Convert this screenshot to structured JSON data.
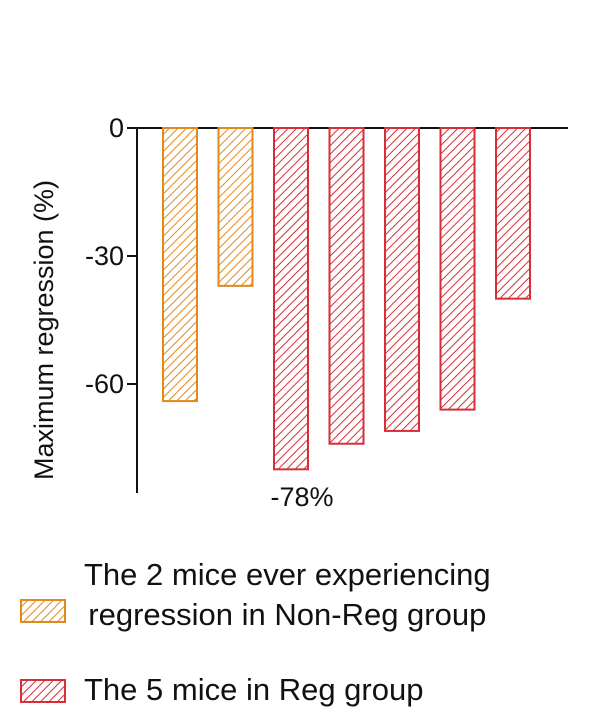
{
  "chart_data": {
    "type": "bar",
    "ylabel": "Maximum regression (%)",
    "ylim": [
      -85,
      0
    ],
    "yticks": [
      0,
      -30,
      -60
    ],
    "ytick_labels": [
      "0",
      "-30",
      "-60"
    ],
    "grid": false,
    "legend_placement": "bottom",
    "series": [
      {
        "name": "The 2 mice ever experiencing regression in Non-Reg group",
        "color": "#e08a1e",
        "values": [
          -64,
          -37
        ]
      },
      {
        "name": "The 5 mice in Reg group",
        "color": "#d62f38",
        "values": [
          -80,
          -74,
          -71,
          -66,
          -40
        ]
      }
    ],
    "annotations": [
      {
        "text": "-78%"
      }
    ]
  },
  "legend": {
    "items": [
      {
        "line1": "The 2 mice ever experiencing",
        "line2": "regression in Non-Reg group",
        "color": "#e08a1e"
      },
      {
        "line1": "The 5 mice in Reg group",
        "color": "#d62f38"
      }
    ]
  }
}
